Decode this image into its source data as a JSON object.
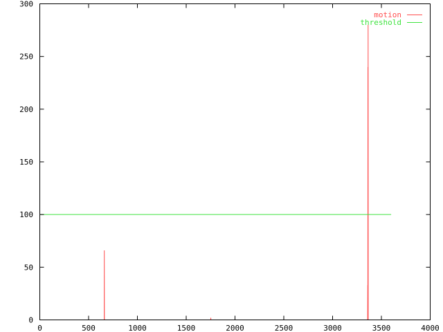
{
  "chart_data": {
    "type": "line",
    "title": "",
    "xlabel": "",
    "ylabel": "",
    "xlim": [
      0,
      4000
    ],
    "ylim": [
      0,
      300
    ],
    "xticks": [
      0,
      500,
      1000,
      1500,
      2000,
      2500,
      3000,
      3500,
      4000
    ],
    "yticks": [
      0,
      50,
      100,
      150,
      200,
      250,
      300
    ],
    "grid": false,
    "legend_position": "top-right",
    "series": [
      {
        "name": "motion",
        "color": "#ff4f4f",
        "points": [
          [
            0,
            0
          ],
          [
            660,
            0
          ],
          [
            661,
            66
          ],
          [
            662,
            0
          ],
          [
            1751,
            0
          ],
          [
            1752,
            2
          ],
          [
            1753,
            0
          ],
          [
            3359,
            0
          ],
          [
            3360,
            33
          ],
          [
            3361,
            0
          ],
          [
            3362,
            240
          ],
          [
            3363,
            0
          ],
          [
            3364,
            280
          ],
          [
            3365,
            0
          ],
          [
            3600,
            0
          ]
        ]
      },
      {
        "name": "threshold",
        "color": "#3fe33f",
        "points": [
          [
            0,
            100
          ],
          [
            3600,
            100
          ]
        ]
      }
    ]
  }
}
